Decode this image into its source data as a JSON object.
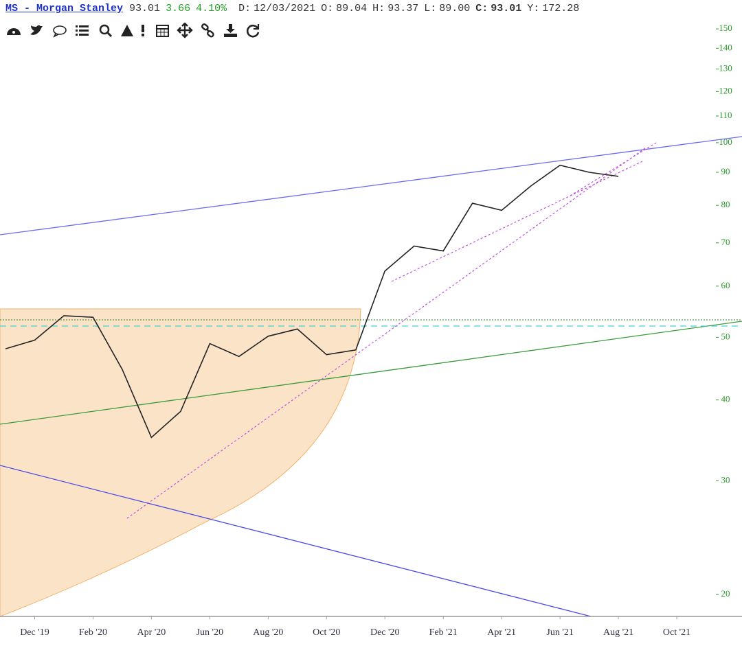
{
  "header": {
    "symbol": "MS - Morgan Stanley",
    "last": "93.01",
    "change": "3.66",
    "change_pct": "4.10%",
    "fields": [
      {
        "label": "D:",
        "value": "12/03/2021"
      },
      {
        "label": "O:",
        "value": "89.04"
      },
      {
        "label": "H:",
        "value": "93.37"
      },
      {
        "label": "L:",
        "value": "89.00"
      },
      {
        "label": "C:",
        "value": "93.01"
      },
      {
        "label": "Y:",
        "value": "172.28"
      }
    ]
  },
  "chart_data": {
    "type": "line",
    "log_y": true,
    "color": "#222222",
    "x": [
      "2019-11",
      "2019-12",
      "2020-01",
      "2020-02",
      "2020-03",
      "2020-04",
      "2020-05",
      "2020-06",
      "2020-07",
      "2020-08",
      "2020-09",
      "2020-10",
      "2020-11",
      "2020-12",
      "2021-01",
      "2021-02",
      "2021-03",
      "2021-04",
      "2021-05",
      "2021-06",
      "2021-07",
      "2021-08"
    ],
    "values": [
      48,
      49.5,
      54,
      53.7,
      44.6,
      35,
      38.4,
      48.9,
      46.7,
      50.2,
      51.5,
      47,
      47.8,
      63.3,
      69.2,
      68,
      80.6,
      78.6,
      85.7,
      92.3,
      90,
      88.7
    ],
    "xlim": [
      "2019-11",
      "2021-12"
    ],
    "xticks": [
      {
        "value": "2019-12",
        "label": "Dec '19"
      },
      {
        "value": "2020-02",
        "label": "Feb '20"
      },
      {
        "value": "2020-04",
        "label": "Apr '20"
      },
      {
        "value": "2020-06",
        "label": "Jun '20"
      },
      {
        "value": "2020-08",
        "label": "Aug '20"
      },
      {
        "value": "2020-10",
        "label": "Oct '20"
      },
      {
        "value": "2020-12",
        "label": "Dec '20"
      },
      {
        "value": "2021-02",
        "label": "Feb '21"
      },
      {
        "value": "2021-04",
        "label": "Apr '21"
      },
      {
        "value": "2021-06",
        "label": "Jun '21"
      },
      {
        "value": "2021-08",
        "label": "Aug '21"
      },
      {
        "value": "2021-10",
        "label": "Oct '21"
      }
    ],
    "ylim": [
      18.5,
      154.5
    ],
    "yticks": [
      20,
      30,
      40,
      50,
      60,
      70,
      80,
      90,
      100,
      110,
      120,
      130,
      140,
      150
    ]
  }
}
